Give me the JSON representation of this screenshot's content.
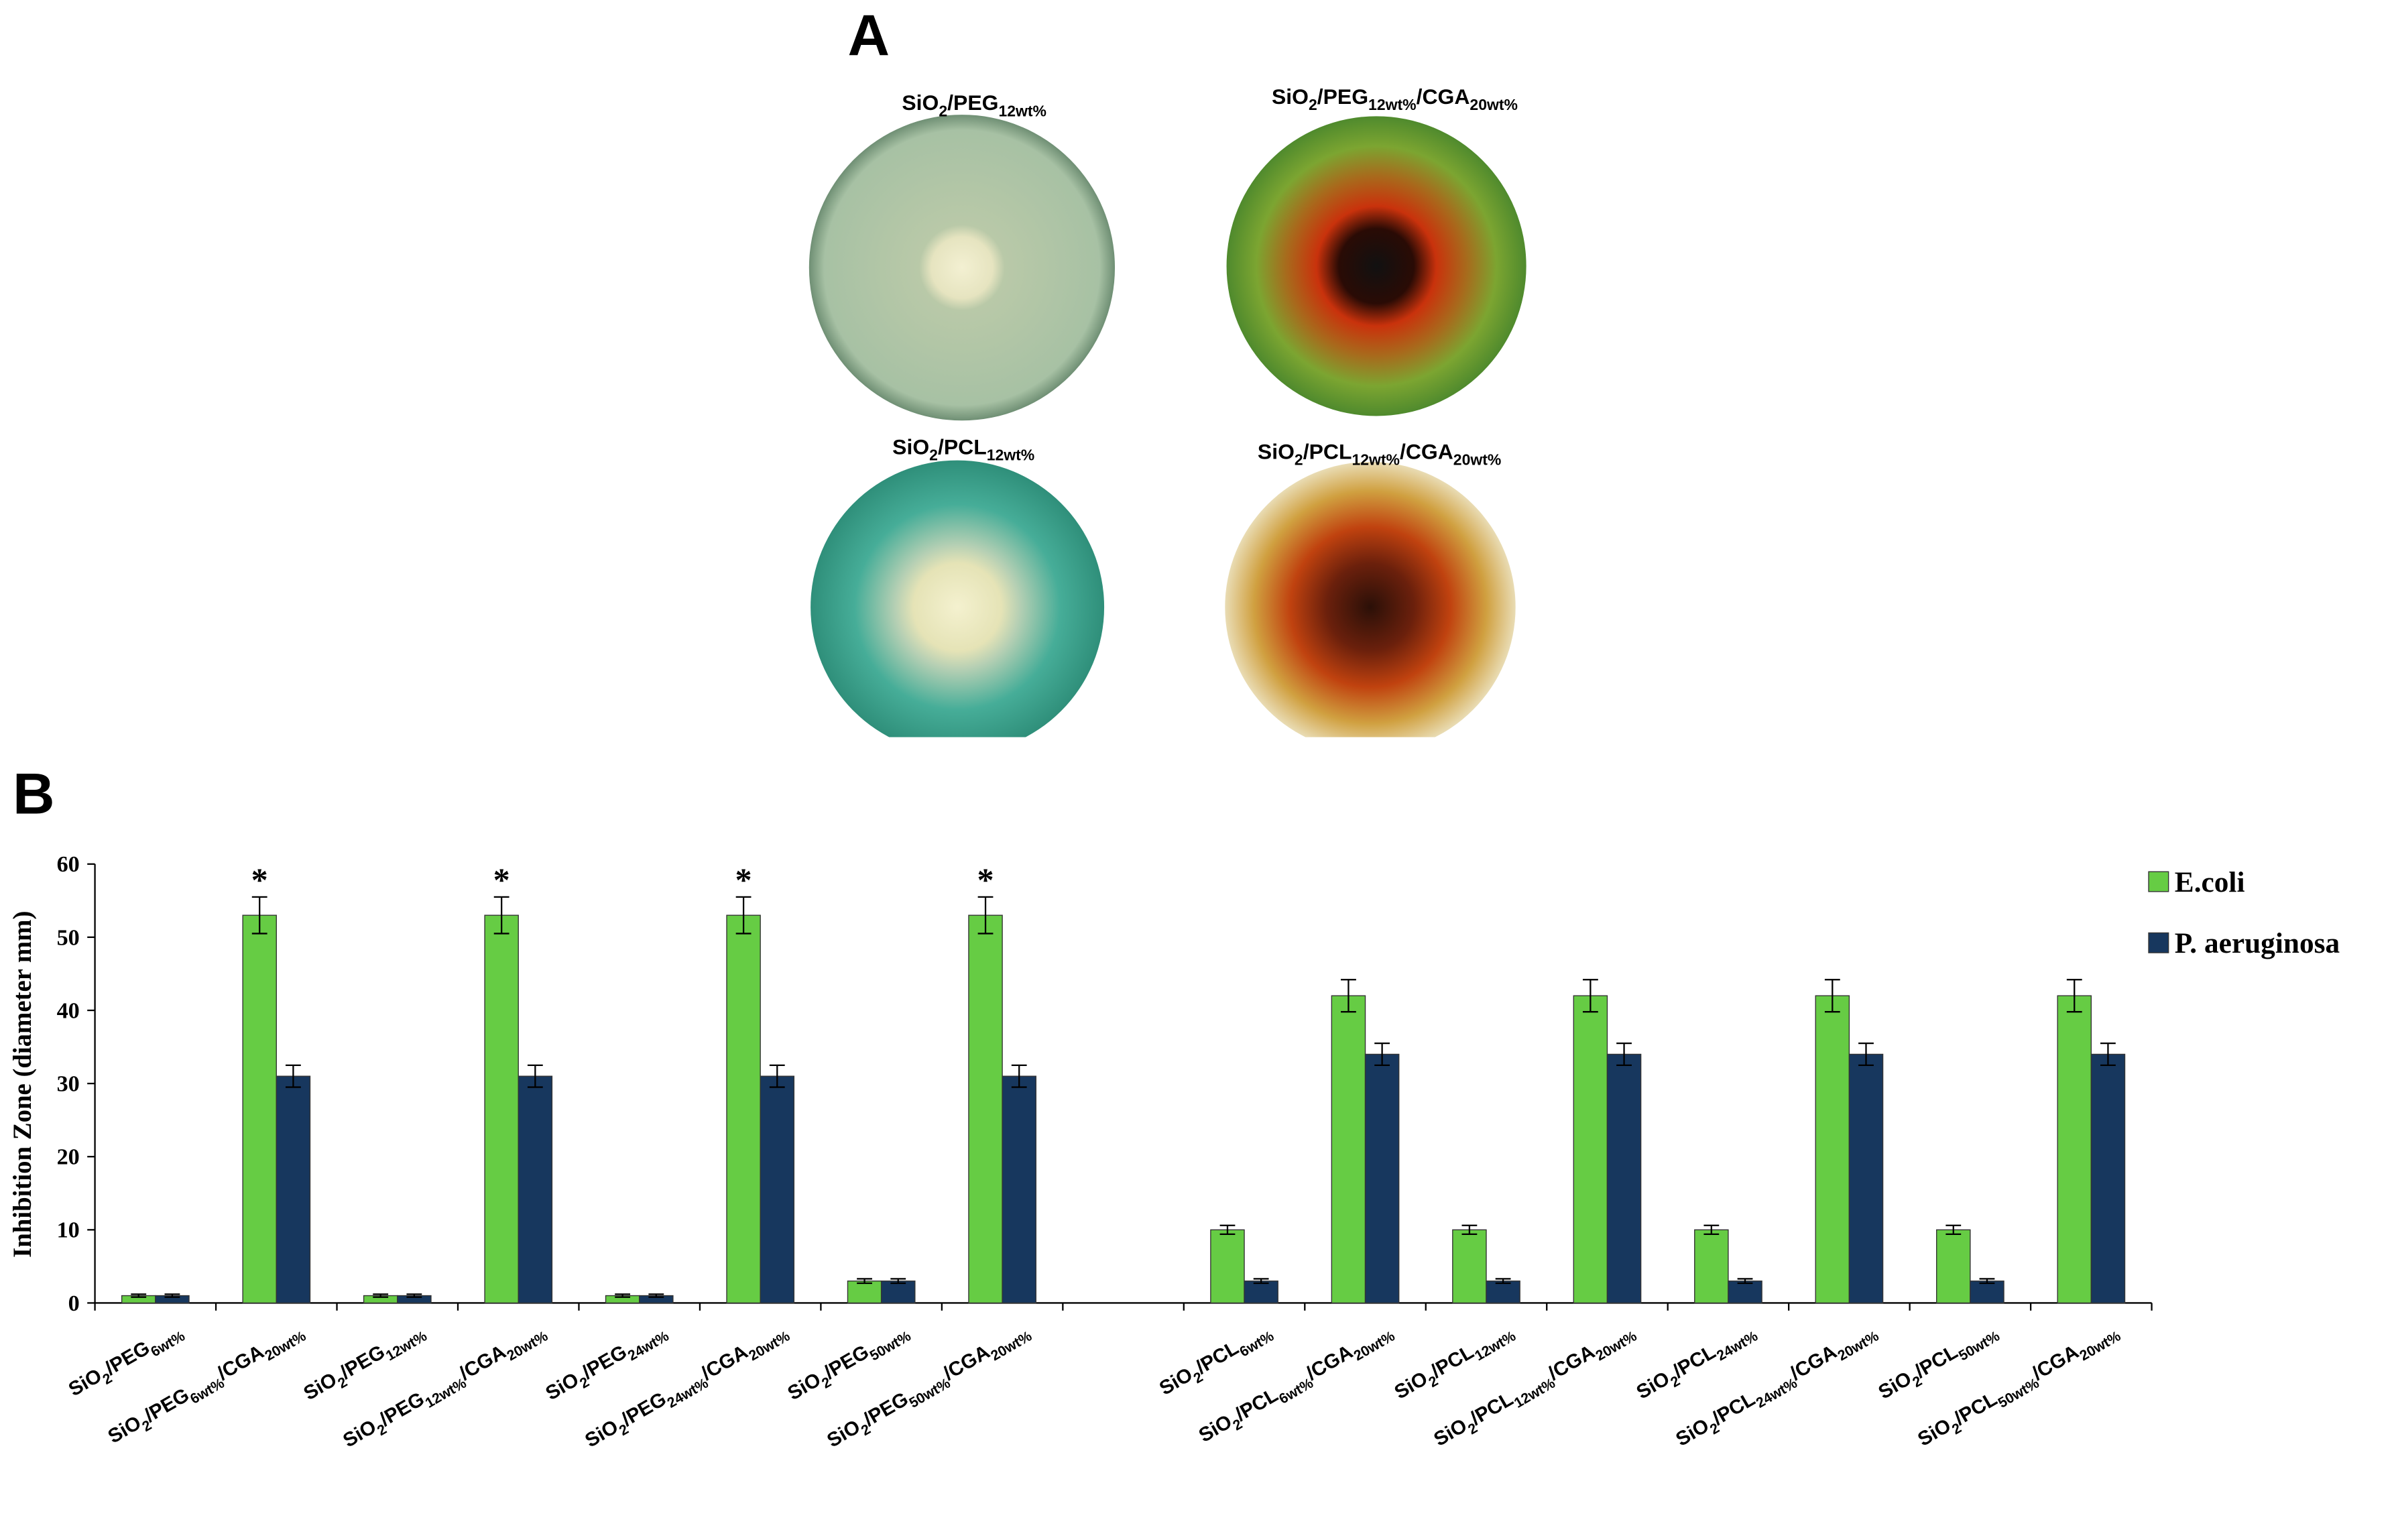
{
  "panel_labels": [
    "A",
    "B"
  ],
  "dishes": [
    "SiO2/PEG12wt%",
    "SiO2/PEG12wt%/CGA20wt%",
    "SiO2/PCL12wt%",
    "SiO2/PCL12wt%/CGA20wt%"
  ],
  "chart_data": {
    "type": "bar",
    "y_label": "Inhibition Zone (diameter mm)",
    "categories": [
      "SiO2/PEG6wt%",
      "SiO2/PEG6wt%/CGA20wt%",
      "SiO2/PEG12wt%",
      "SiO2/PEG12wt%/CGA20wt%",
      "SiO2/PEG24wt%",
      "SiO2/PEG24wt%/CGA20wt%",
      "SiO2/PEG50wt%",
      "SiO2/PEG50wt%/CGA20wt%",
      null,
      "SiO2/PCL6wt%",
      "SiO2/PCL6wt%/CGA20wt%",
      "SiO2/PCL12wt%",
      "SiO2/PCL12wt%/CGA20wt%",
      "SiO2/PCL24wt%",
      "SiO2/PCL24wt%/CGA20wt%",
      "SiO2/PCL50wt%",
      "SiO2/PCL50wt%/CGA20wt%"
    ],
    "series": [
      {
        "name": "E.coli",
        "color": "#66cc44",
        "values": [
          1,
          53,
          1,
          53,
          1,
          53,
          3,
          53,
          null,
          10,
          42,
          10,
          42,
          10,
          42,
          10,
          42
        ],
        "errors": [
          0.2,
          2.5,
          0.2,
          2.5,
          0.2,
          2.5,
          0.3,
          2.5,
          null,
          0.6,
          2.2,
          0.6,
          2.2,
          0.6,
          2.2,
          0.6,
          2.2
        ]
      },
      {
        "name": "P. aeruginosa",
        "color": "#17375e",
        "values": [
          1,
          31,
          1,
          31,
          1,
          31,
          3,
          31,
          null,
          3,
          34,
          3,
          34,
          3,
          34,
          3,
          34
        ],
        "errors": [
          0.2,
          1.5,
          0.2,
          1.5,
          0.2,
          1.5,
          0.3,
          1.5,
          null,
          0.3,
          1.5,
          0.3,
          1.5,
          0.3,
          1.5,
          0.3,
          1.5
        ]
      }
    ],
    "markers": [
      null,
      "*",
      null,
      "*",
      null,
      "*",
      null,
      "*",
      null,
      null,
      null,
      null,
      null,
      null,
      null,
      null,
      null
    ],
    "ylim": [
      0,
      60
    ],
    "yticks": [
      0,
      10,
      20,
      30,
      40,
      50,
      60
    ],
    "grid": false,
    "legend": "right"
  }
}
